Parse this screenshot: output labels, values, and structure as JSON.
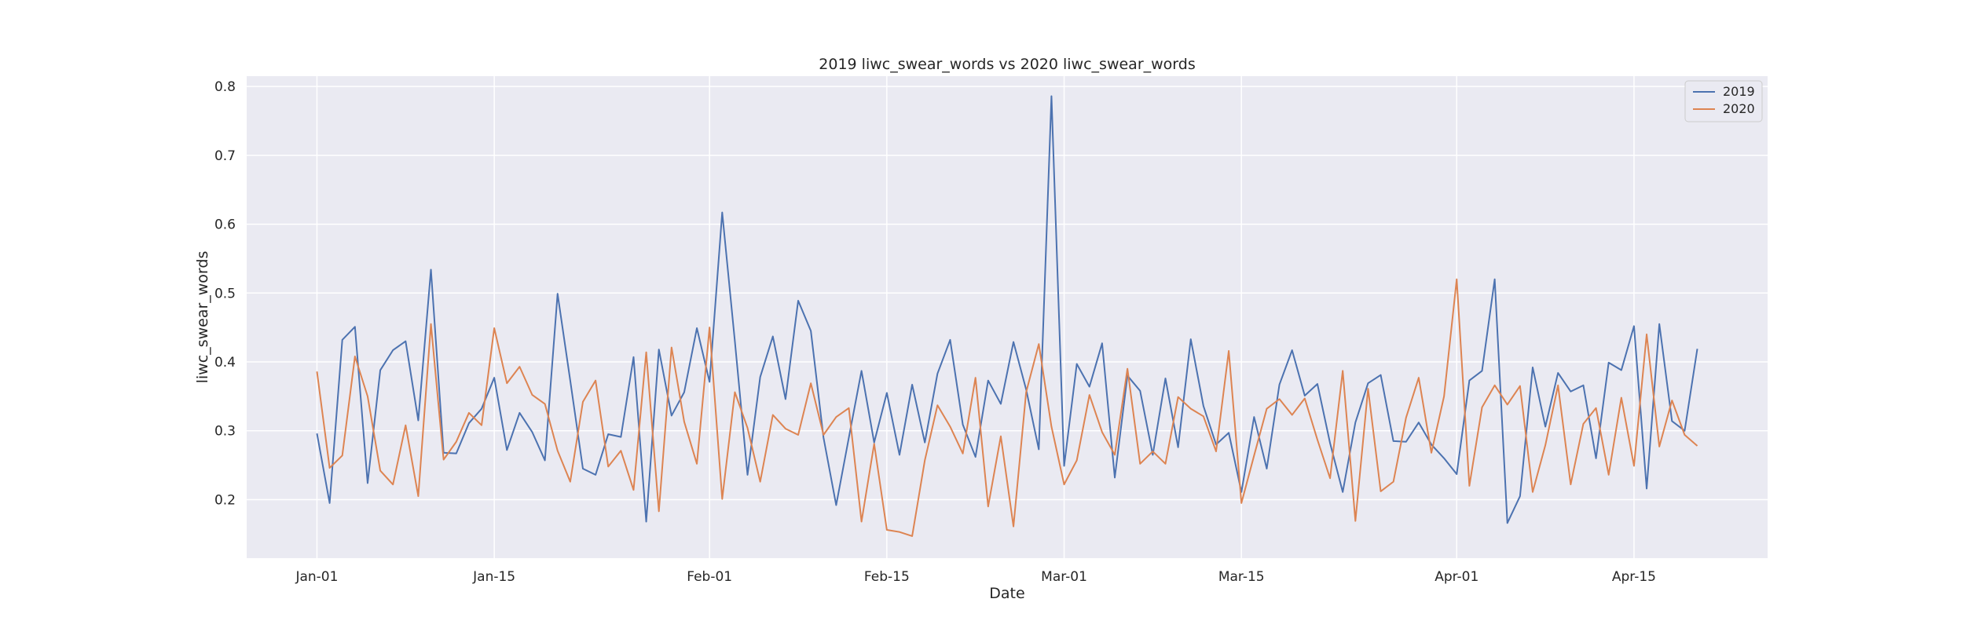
{
  "chart_data": {
    "type": "line",
    "title": "2019 liwc_swear_words vs 2020 liwc_swear_words",
    "xlabel": "Date",
    "ylabel": "liwc_swear_words",
    "x_start": "Jan-01",
    "x_ticks": [
      {
        "label": "Jan-01",
        "day": 0
      },
      {
        "label": "Jan-15",
        "day": 14
      },
      {
        "label": "Feb-01",
        "day": 31
      },
      {
        "label": "Feb-15",
        "day": 45
      },
      {
        "label": "Mar-01",
        "day": 59
      },
      {
        "label": "Mar-15",
        "day": 73
      },
      {
        "label": "Apr-01",
        "day": 90
      },
      {
        "label": "Apr-15",
        "day": 104
      }
    ],
    "y_ticks": [
      "0.2",
      "0.3",
      "0.4",
      "0.5",
      "0.6",
      "0.7",
      "0.8"
    ],
    "ylim": [
      0.115,
      0.815
    ],
    "grid": true,
    "legend_position": "top-right",
    "series": [
      {
        "name": "2019",
        "color": "#4c72b0",
        "values": [
          0.296,
          0.195,
          0.432,
          0.451,
          0.224,
          0.388,
          0.417,
          0.43,
          0.315,
          0.534,
          0.268,
          0.267,
          0.311,
          0.332,
          0.377,
          0.272,
          0.326,
          0.298,
          0.257,
          0.499,
          0.373,
          0.245,
          0.236,
          0.295,
          0.291,
          0.407,
          0.168,
          0.418,
          0.322,
          0.356,
          0.449,
          0.371,
          0.617,
          0.43,
          0.236,
          0.378,
          0.437,
          0.346,
          0.489,
          0.445,
          0.29,
          0.192,
          0.29,
          0.387,
          0.283,
          0.355,
          0.265,
          0.367,
          0.283,
          0.383,
          0.432,
          0.309,
          0.262,
          0.373,
          0.339,
          0.429,
          0.36,
          0.273,
          0.786,
          0.249,
          0.397,
          0.364,
          0.427,
          0.232,
          0.38,
          0.358,
          0.265,
          0.376,
          0.276,
          0.433,
          0.336,
          0.28,
          0.297,
          0.211,
          0.32,
          0.245,
          0.367,
          0.417,
          0.351,
          0.368,
          0.282,
          0.211,
          0.312,
          0.369,
          0.381,
          0.285,
          0.284,
          0.312,
          0.28,
          0.26,
          0.237,
          0.373,
          0.387,
          0.52,
          0.166,
          0.205,
          0.392,
          0.306,
          0.384,
          0.357,
          0.366,
          0.26,
          0.399,
          0.388,
          0.452,
          0.216,
          0.455,
          0.314,
          0.3,
          0.419
        ]
      },
      {
        "name": "2020",
        "color": "#dd8452",
        "values": [
          0.386,
          0.246,
          0.264,
          0.408,
          0.35,
          0.242,
          0.222,
          0.308,
          0.205,
          0.455,
          0.258,
          0.284,
          0.326,
          0.308,
          0.449,
          0.369,
          0.393,
          0.352,
          0.339,
          0.271,
          0.226,
          0.342,
          0.373,
          0.248,
          0.271,
          0.214,
          0.414,
          0.183,
          0.421,
          0.313,
          0.252,
          0.45,
          0.201,
          0.356,
          0.304,
          0.226,
          0.323,
          0.303,
          0.294,
          0.369,
          0.294,
          0.32,
          0.333,
          0.168,
          0.281,
          0.156,
          0.153,
          0.147,
          0.257,
          0.337,
          0.306,
          0.267,
          0.377,
          0.19,
          0.292,
          0.161,
          0.356,
          0.426,
          0.306,
          0.222,
          0.257,
          0.352,
          0.298,
          0.265,
          0.39,
          0.252,
          0.27,
          0.252,
          0.349,
          0.332,
          0.321,
          0.27,
          0.416,
          0.195,
          0.264,
          0.332,
          0.346,
          0.323,
          0.347,
          0.287,
          0.231,
          0.387,
          0.169,
          0.361,
          0.212,
          0.226,
          0.319,
          0.377,
          0.268,
          0.35,
          0.52,
          0.22,
          0.334,
          0.366,
          0.338,
          0.365,
          0.211,
          0.279,
          0.366,
          0.222,
          0.31,
          0.333,
          0.236,
          0.348,
          0.249,
          0.44,
          0.277,
          0.344,
          0.294,
          0.278
        ]
      }
    ]
  }
}
